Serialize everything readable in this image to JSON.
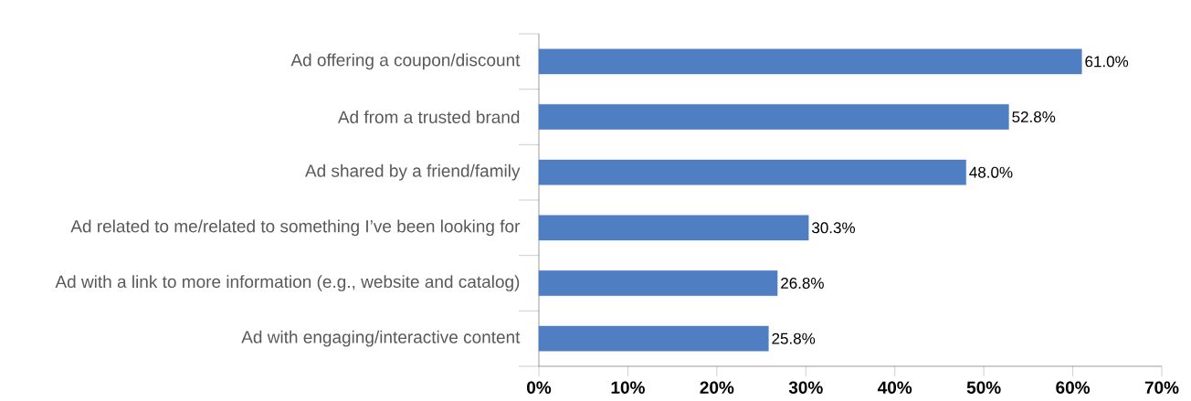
{
  "chart_data": {
    "type": "bar",
    "orientation": "horizontal",
    "categories": [
      "Ad offering a coupon/discount",
      "Ad from a trusted brand",
      "Ad shared by a friend/family",
      "Ad related to me/related to something I’ve been looking for",
      "Ad with a link to more information (e.g., website and catalog)",
      "Ad with engaging/interactive content"
    ],
    "values": [
      61.0,
      52.8,
      48.0,
      30.3,
      26.8,
      25.8
    ],
    "value_labels": [
      "61.0%",
      "52.8%",
      "48.0%",
      "30.3%",
      "26.8%",
      "25.8%"
    ],
    "color": "#4f7ec2",
    "xlim": [
      0,
      70
    ],
    "xticks": [
      {
        "value": 0,
        "label": "0%"
      },
      {
        "value": 10,
        "label": "10%"
      },
      {
        "value": 20,
        "label": "20%"
      },
      {
        "value": 30,
        "label": "30%"
      },
      {
        "value": 40,
        "label": "40%"
      },
      {
        "value": 50,
        "label": "50%"
      },
      {
        "value": 60,
        "label": "60%"
      },
      {
        "value": 70,
        "label": "70%"
      }
    ]
  }
}
